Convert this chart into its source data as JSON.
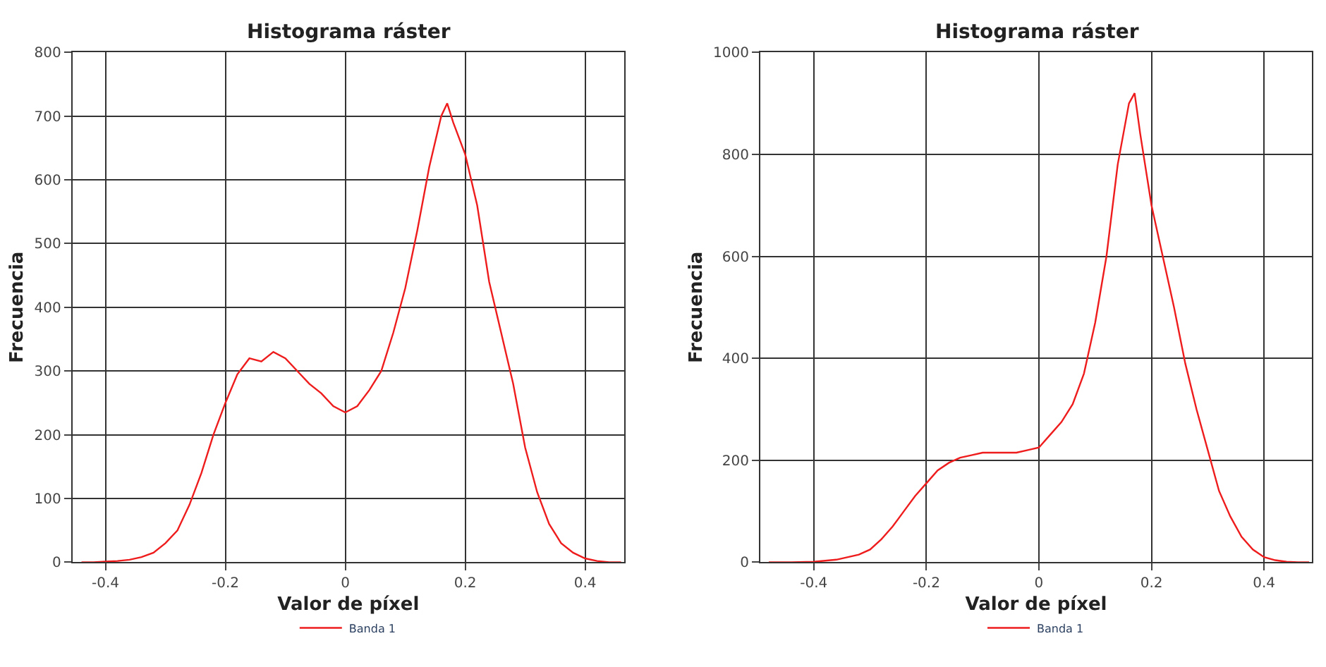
{
  "chart_data": [
    {
      "type": "line",
      "title": "Histograma ráster",
      "xlabel": "Valor de píxel",
      "ylabel": "Frecuencia",
      "xlim": [
        -0.455,
        0.465
      ],
      "ylim": [
        0,
        800
      ],
      "xticks": [
        -0.4,
        -0.2,
        0,
        0.2,
        0.4
      ],
      "yticks": [
        0,
        100,
        200,
        300,
        400,
        500,
        600,
        700,
        800
      ],
      "grid": true,
      "legend": "bottom",
      "marker": "none",
      "line_style": "solid",
      "x": [
        -0.44,
        -0.42,
        -0.4,
        -0.38,
        -0.36,
        -0.34,
        -0.32,
        -0.3,
        -0.28,
        -0.26,
        -0.24,
        -0.22,
        -0.2,
        -0.18,
        -0.16,
        -0.14,
        -0.12,
        -0.1,
        -0.08,
        -0.06,
        -0.04,
        -0.02,
        0,
        0.02,
        0.04,
        0.06,
        0.08,
        0.1,
        0.12,
        0.14,
        0.16,
        0.17,
        0.18,
        0.2,
        0.22,
        0.24,
        0.26,
        0.28,
        0.3,
        0.32,
        0.34,
        0.36,
        0.38,
        0.4,
        0.42,
        0.44,
        0.46
      ],
      "series": [
        {
          "name": "Banda 1",
          "color": "#ee1c1c",
          "values": [
            0,
            0,
            1,
            2,
            4,
            8,
            15,
            30,
            50,
            90,
            140,
            200,
            250,
            295,
            320,
            315,
            330,
            320,
            300,
            280,
            265,
            245,
            235,
            245,
            270,
            300,
            360,
            430,
            520,
            620,
            700,
            720,
            690,
            640,
            560,
            440,
            360,
            280,
            180,
            110,
            60,
            30,
            15,
            6,
            2,
            0,
            0
          ]
        }
      ]
    },
    {
      "type": "line",
      "title": "Histograma ráster",
      "xlabel": "Valor de píxel",
      "ylabel": "Frecuencia",
      "xlim": [
        -0.495,
        0.485
      ],
      "ylim": [
        0,
        1000
      ],
      "xticks": [
        -0.4,
        -0.2,
        0,
        0.2,
        0.4
      ],
      "yticks": [
        0,
        200,
        400,
        600,
        800,
        1000
      ],
      "grid": true,
      "legend": "bottom",
      "marker": "none",
      "line_style": "solid",
      "x": [
        -0.48,
        -0.44,
        -0.4,
        -0.36,
        -0.32,
        -0.3,
        -0.28,
        -0.26,
        -0.24,
        -0.22,
        -0.2,
        -0.18,
        -0.16,
        -0.14,
        -0.12,
        -0.1,
        -0.08,
        -0.06,
        -0.04,
        -0.02,
        0,
        0.02,
        0.04,
        0.06,
        0.08,
        0.1,
        0.12,
        0.14,
        0.16,
        0.17,
        0.18,
        0.2,
        0.22,
        0.24,
        0.26,
        0.28,
        0.3,
        0.32,
        0.34,
        0.36,
        0.38,
        0.4,
        0.42,
        0.44,
        0.46,
        0.48
      ],
      "series": [
        {
          "name": "Banda 1",
          "color": "#ee1c1c",
          "values": [
            0,
            0,
            1,
            5,
            15,
            25,
            45,
            70,
            100,
            130,
            155,
            180,
            195,
            205,
            210,
            215,
            215,
            215,
            215,
            220,
            225,
            250,
            275,
            310,
            370,
            470,
            600,
            780,
            900,
            920,
            840,
            700,
            600,
            500,
            390,
            300,
            220,
            140,
            90,
            50,
            25,
            10,
            4,
            1,
            0,
            0
          ]
        }
      ]
    }
  ]
}
